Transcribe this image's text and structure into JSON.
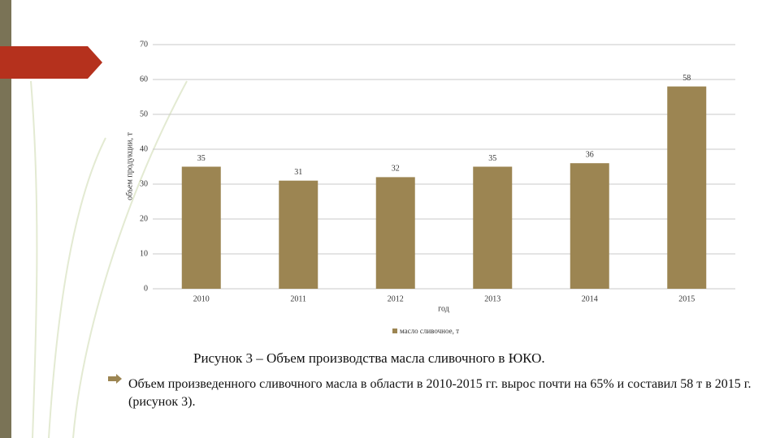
{
  "chart_data": {
    "type": "bar",
    "categories": [
      "2010",
      "2011",
      "2012",
      "2013",
      "2014",
      "2015"
    ],
    "series": [
      {
        "name": "масло сливочное, т",
        "color": "#9c8552",
        "values": [
          35,
          31,
          32,
          35,
          36,
          58
        ]
      }
    ],
    "ylim": [
      0,
      70
    ],
    "yticks": [
      0,
      10,
      20,
      30,
      40,
      50,
      60,
      70
    ],
    "grid": true,
    "y_label": "объем продукции, т",
    "x_label": "год",
    "legend": "bottom"
  },
  "caption": "Рисунок 3 – Объем производства масла сливочного в ЮКО.",
  "bullet": "Объем произведенного сливочного масла в области в 2010-2015 гг. вырос почти на 65% и составил 58 т в 2015 г. (рисунок 3)."
}
